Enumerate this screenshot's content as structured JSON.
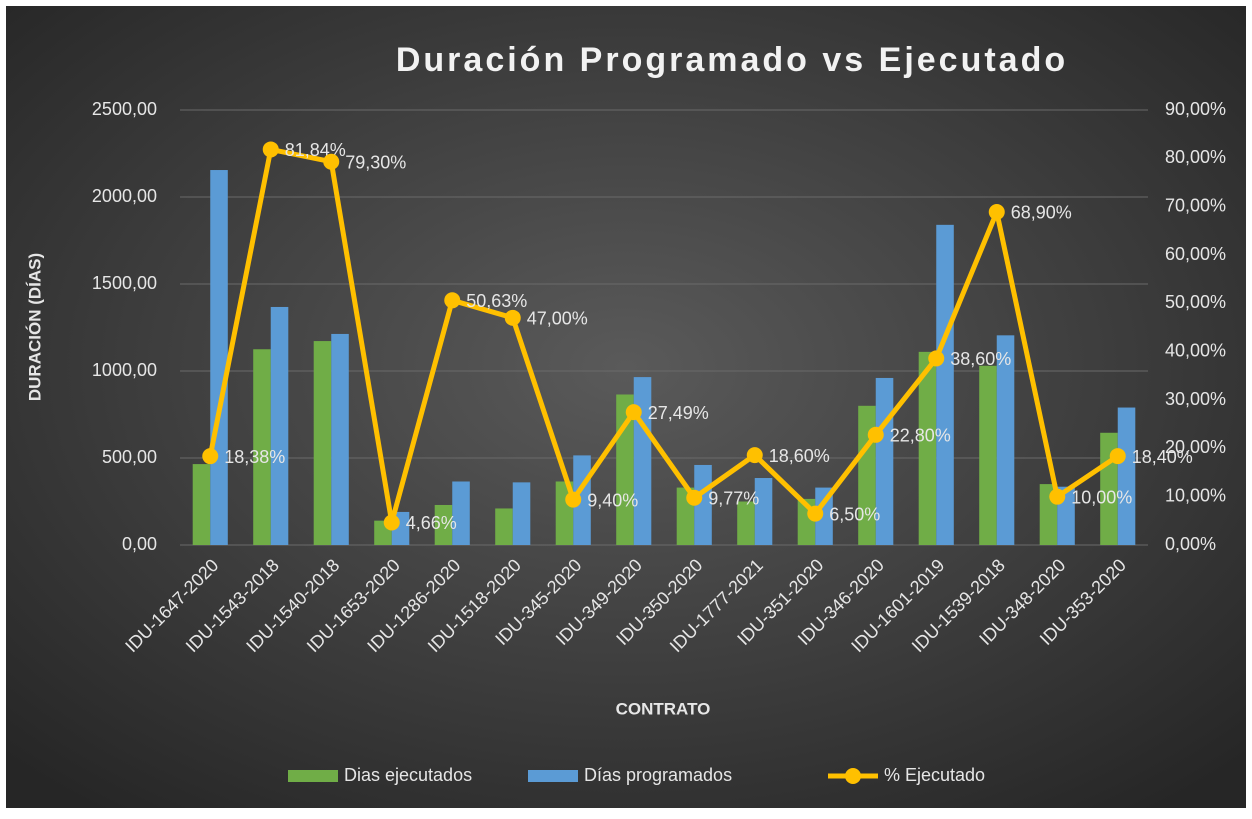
{
  "chart_data": {
    "type": "bar_line",
    "title": "Duración Programado vs Ejecutado",
    "y_label": "DURACIÓN (DÍAS)",
    "x_label": "CONTRATO",
    "categories": [
      "IDU-1647-2020",
      "IDU-1543-2018",
      "IDU-1540-2018",
      "IDU-1653-2020",
      "IDU-1286-2020",
      "IDU-1518-2020",
      "IDU-345-2020",
      "IDU-349-2020",
      "IDU-350-2020",
      "IDU-1777-2021",
      "IDU-351-2020",
      "IDU-346-2020",
      "IDU-1601-2019",
      "IDU-1539-2018",
      "IDU-348-2020",
      "IDU-353-2020"
    ],
    "series": [
      {
        "name": "Dias ejecutados",
        "color": "#70ad47",
        "values": [
          465,
          1125,
          1172,
          140,
          230,
          210,
          365,
          865,
          330,
          250,
          265,
          800,
          1110,
          1030,
          350,
          645
        ]
      },
      {
        "name": "Días programados",
        "color": "#5b9bd5",
        "values": [
          2155,
          1368,
          1213,
          190,
          365,
          360,
          515,
          965,
          460,
          385,
          330,
          960,
          1840,
          1205,
          335,
          790
        ]
      },
      {
        "name": "% Ejecutado",
        "color": "#ffc000",
        "axis": "y2",
        "values": [
          18.38,
          81.84,
          79.3,
          4.66,
          50.63,
          47.0,
          9.4,
          27.49,
          9.77,
          18.6,
          6.5,
          22.8,
          38.6,
          68.9,
          10.0,
          18.4
        ],
        "value_labels": [
          "18,38%",
          "81,84%",
          "79,30%",
          "4,66%",
          "50,63%",
          "47,00%",
          "9,40%",
          "27,49%",
          "9,77%",
          "18,60%",
          "6,50%",
          "22,80%",
          "38,60%",
          "68,90%",
          "10,00%",
          "18,40%"
        ]
      }
    ],
    "ylim": [
      0,
      2500
    ],
    "yticks": [
      {
        "value": 0,
        "label": "0,00"
      },
      {
        "value": 500,
        "label": "500,00"
      },
      {
        "value": 1000,
        "label": "1000,00"
      },
      {
        "value": 1500,
        "label": "1500,00"
      },
      {
        "value": 2000,
        "label": "2000,00"
      },
      {
        "value": 2500,
        "label": "2500,00"
      }
    ],
    "y2lim": [
      0,
      90
    ],
    "y2ticks": [
      {
        "value": 0,
        "label": "0,00%"
      },
      {
        "value": 10,
        "label": "10,00%"
      },
      {
        "value": 20,
        "label": "20,00%"
      },
      {
        "value": 30,
        "label": "30,00%"
      },
      {
        "value": 40,
        "label": "40,00%"
      },
      {
        "value": 50,
        "label": "50,00%"
      },
      {
        "value": 60,
        "label": "60,00%"
      },
      {
        "value": 70,
        "label": "70,00%"
      },
      {
        "value": 80,
        "label": "80,00%"
      },
      {
        "value": 90,
        "label": "90,00%"
      }
    ],
    "grid": true,
    "legend": "bottom"
  }
}
